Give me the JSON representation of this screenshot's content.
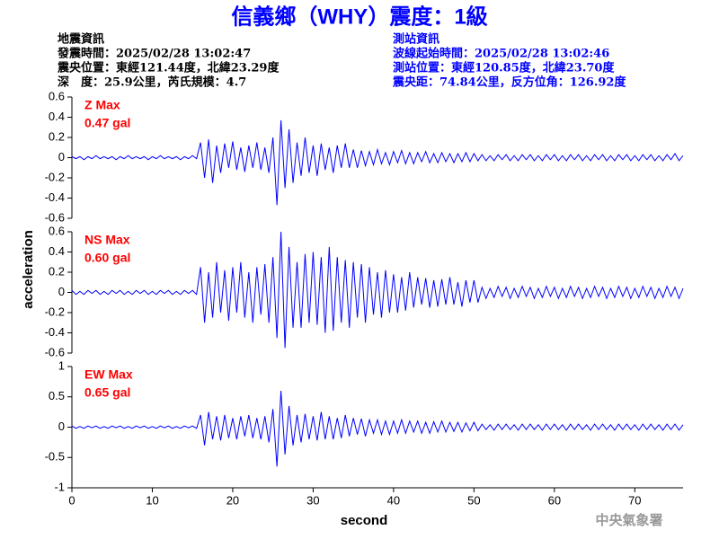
{
  "header": {
    "title": "信義鄉（WHY）震度：1級",
    "left": [
      "地震資訊",
      "發震時間：2025/02/28 13:02:47",
      "震央位置：東經121.44度，北緯23.29度",
      "深　度：25.9公里，芮氏規模：4.7"
    ],
    "right": [
      "測站資訊",
      "波線起始時間：2025/02/28 13:02:46",
      "測站位置：東經120.85度，北緯23.70度",
      "震央距：74.84公里，反方位角：126.92度"
    ]
  },
  "footer": "中央氣象署",
  "chart_data": {
    "type": "line",
    "xlabel": "second",
    "ylabel": "acceleration",
    "xlim": [
      0,
      76
    ],
    "xticks": [
      0,
      10,
      20,
      30,
      40,
      50,
      60,
      70
    ],
    "color": "#0000ff",
    "x": [
      0,
      0.5,
      1,
      1.5,
      2,
      2.5,
      3,
      3.5,
      4,
      4.5,
      5,
      5.5,
      6,
      6.5,
      7,
      7.5,
      8,
      8.5,
      9,
      9.5,
      10,
      10.5,
      11,
      11.5,
      12,
      12.5,
      13,
      13.5,
      14,
      14.5,
      15,
      15.5,
      16,
      16.5,
      17,
      17.5,
      18,
      18.5,
      19,
      19.5,
      20,
      20.5,
      21,
      21.5,
      22,
      22.5,
      23,
      23.5,
      24,
      24.5,
      25,
      25.5,
      26,
      26.5,
      27,
      27.5,
      28,
      28.5,
      29,
      29.5,
      30,
      30.5,
      31,
      31.5,
      32,
      32.5,
      33,
      33.5,
      34,
      34.5,
      35,
      35.5,
      36,
      36.5,
      37,
      37.5,
      38,
      38.5,
      39,
      39.5,
      40,
      40.5,
      41,
      41.5,
      42,
      42.5,
      43,
      43.5,
      44,
      44.5,
      45,
      45.5,
      46,
      46.5,
      47,
      47.5,
      48,
      48.5,
      49,
      49.5,
      50,
      50.5,
      51,
      51.5,
      52,
      52.5,
      53,
      53.5,
      54,
      54.5,
      55,
      55.5,
      56,
      56.5,
      57,
      57.5,
      58,
      58.5,
      59,
      59.5,
      60,
      60.5,
      61,
      61.5,
      62,
      62.5,
      63,
      63.5,
      64,
      64.5,
      65,
      65.5,
      66,
      66.5,
      67,
      67.5,
      68,
      68.5,
      69,
      69.5,
      70,
      70.5,
      71,
      71.5,
      72,
      72.5,
      73,
      73.5,
      74,
      74.5,
      75,
      75.5,
      76
    ],
    "panels": [
      {
        "name": "Z Max",
        "max_label": "0.47 gal",
        "ylim": [
          -0.6,
          0.6
        ],
        "yticks": [
          0.6,
          0.4,
          0.2,
          0,
          -0.2,
          -0.4,
          -0.6
        ],
        "values": [
          0.01,
          -0.01,
          0.01,
          -0.02,
          0.01,
          -0.01,
          0.02,
          -0.01,
          0.01,
          -0.01,
          0.01,
          -0.02,
          0.01,
          -0.01,
          0.02,
          -0.01,
          0.01,
          -0.01,
          0.01,
          -0.02,
          0.01,
          -0.01,
          0.02,
          -0.01,
          0.01,
          -0.01,
          0.01,
          -0.02,
          0.01,
          -0.01,
          0.02,
          -0.01,
          0.15,
          -0.2,
          0.18,
          -0.25,
          0.12,
          -0.15,
          0.14,
          -0.1,
          0.16,
          -0.12,
          0.1,
          -0.14,
          0.12,
          -0.1,
          0.15,
          -0.12,
          0.1,
          -0.15,
          0.2,
          -0.47,
          0.37,
          -0.3,
          0.28,
          -0.25,
          0.15,
          -0.18,
          0.2,
          -0.15,
          0.12,
          -0.18,
          0.14,
          -0.12,
          0.1,
          -0.15,
          0.12,
          -0.1,
          0.14,
          -0.1,
          0.08,
          -0.1,
          0.07,
          -0.08,
          0.06,
          -0.07,
          0.08,
          -0.06,
          0.05,
          -0.07,
          0.06,
          -0.05,
          0.07,
          -0.06,
          0.05,
          -0.06,
          0.05,
          -0.04,
          0.06,
          -0.05,
          0.04,
          -0.05,
          0.05,
          -0.04,
          0.04,
          -0.05,
          0.04,
          -0.04,
          0.05,
          -0.04,
          0.04,
          -0.03,
          0.03,
          -0.03,
          0.02,
          -0.03,
          0.03,
          -0.02,
          0.03,
          -0.03,
          0.02,
          -0.03,
          0.03,
          -0.02,
          0.03,
          -0.03,
          0.02,
          -0.03,
          0.03,
          -0.02,
          0.03,
          -0.03,
          0.02,
          -0.03,
          0.03,
          -0.02,
          0.03,
          -0.03,
          0.02,
          -0.03,
          0.03,
          -0.02,
          0.03,
          -0.03,
          0.02,
          -0.03,
          0.03,
          -0.02,
          0.03,
          -0.03,
          0.02,
          -0.03,
          0.03,
          -0.02,
          0.03,
          -0.03,
          0.02,
          -0.03,
          0.03,
          -0.02,
          0.04,
          -0.03,
          0.02
        ]
      },
      {
        "name": "NS Max",
        "max_label": "0.60 gal",
        "ylim": [
          -0.6,
          0.6
        ],
        "yticks": [
          0.6,
          0.4,
          0.2,
          0,
          -0.2,
          -0.4,
          -0.6
        ],
        "values": [
          0.02,
          -0.02,
          0.01,
          -0.02,
          0.02,
          -0.01,
          0.02,
          -0.02,
          0.01,
          -0.02,
          0.02,
          -0.01,
          0.02,
          -0.02,
          0.01,
          -0.02,
          0.02,
          -0.01,
          0.02,
          -0.02,
          0.01,
          -0.02,
          0.02,
          -0.01,
          0.02,
          -0.02,
          0.01,
          -0.02,
          0.02,
          -0.01,
          0.02,
          -0.02,
          0.25,
          -0.3,
          0.2,
          -0.25,
          0.3,
          -0.2,
          0.22,
          -0.28,
          0.25,
          -0.2,
          0.3,
          -0.25,
          0.2,
          -0.3,
          0.25,
          -0.22,
          0.28,
          -0.3,
          0.35,
          -0.45,
          0.6,
          -0.55,
          0.45,
          -0.35,
          0.3,
          -0.35,
          0.38,
          -0.3,
          0.4,
          -0.32,
          0.35,
          -0.4,
          0.45,
          -0.38,
          0.35,
          -0.3,
          0.32,
          -0.35,
          0.3,
          -0.25,
          0.28,
          -0.3,
          0.25,
          -0.22,
          0.2,
          -0.25,
          0.22,
          -0.2,
          0.18,
          -0.2,
          0.15,
          -0.18,
          0.2,
          -0.15,
          0.15,
          -0.12,
          0.14,
          -0.15,
          0.12,
          -0.14,
          0.13,
          -0.12,
          0.15,
          -0.12,
          0.1,
          -0.14,
          0.12,
          -0.1,
          0.12,
          -0.1,
          0.05,
          -0.06,
          0.04,
          -0.05,
          0.06,
          -0.04,
          0.05,
          -0.06,
          0.04,
          -0.05,
          0.06,
          -0.04,
          0.05,
          -0.06,
          0.04,
          -0.05,
          0.06,
          -0.04,
          0.05,
          -0.06,
          0.04,
          -0.05,
          0.06,
          -0.04,
          0.05,
          -0.06,
          0.04,
          -0.05,
          0.06,
          -0.04,
          0.05,
          -0.06,
          0.04,
          -0.05,
          0.06,
          -0.04,
          0.05,
          -0.06,
          0.04,
          -0.05,
          0.06,
          -0.04,
          0.05,
          -0.06,
          0.04,
          -0.05,
          0.06,
          -0.04,
          0.05,
          -0.06,
          0.04
        ]
      },
      {
        "name": "EW Max",
        "max_label": "0.65 gal",
        "ylim": [
          -1,
          1
        ],
        "yticks": [
          1,
          0.5,
          0,
          -0.5,
          -1
        ],
        "values": [
          0.02,
          -0.02,
          0.01,
          -0.02,
          0.02,
          -0.01,
          0.02,
          -0.02,
          0.01,
          -0.02,
          0.02,
          -0.01,
          0.02,
          -0.02,
          0.01,
          -0.02,
          0.02,
          -0.01,
          0.02,
          -0.02,
          0.01,
          -0.02,
          0.02,
          -0.01,
          0.02,
          -0.02,
          0.01,
          -0.02,
          0.02,
          -0.01,
          0.02,
          -0.02,
          0.2,
          -0.3,
          0.25,
          -0.2,
          0.18,
          -0.22,
          0.2,
          -0.18,
          0.15,
          -0.2,
          0.18,
          -0.15,
          0.2,
          -0.18,
          0.15,
          -0.2,
          0.18,
          -0.25,
          0.3,
          -0.65,
          0.6,
          -0.45,
          0.35,
          -0.3,
          0.2,
          -0.25,
          0.22,
          -0.2,
          0.18,
          -0.22,
          0.25,
          -0.2,
          0.18,
          -0.2,
          0.15,
          -0.18,
          0.2,
          -0.15,
          0.15,
          -0.12,
          0.14,
          -0.15,
          0.12,
          -0.1,
          0.12,
          -0.12,
          0.1,
          -0.12,
          0.1,
          -0.1,
          0.12,
          -0.1,
          0.1,
          -0.08,
          0.1,
          -0.1,
          0.08,
          -0.1,
          0.09,
          -0.08,
          0.1,
          -0.08,
          0.08,
          -0.07,
          0.08,
          -0.08,
          0.07,
          -0.06,
          0.08,
          -0.06,
          0.05,
          -0.04,
          0.04,
          -0.05,
          0.05,
          -0.04,
          0.05,
          -0.04,
          0.04,
          -0.05,
          0.05,
          -0.04,
          0.05,
          -0.04,
          0.04,
          -0.05,
          0.05,
          -0.04,
          0.05,
          -0.04,
          0.04,
          -0.05,
          0.05,
          -0.04,
          0.05,
          -0.04,
          0.04,
          -0.05,
          0.05,
          -0.04,
          0.05,
          -0.04,
          0.04,
          -0.05,
          0.05,
          -0.04,
          0.05,
          -0.04,
          0.04,
          -0.05,
          0.05,
          -0.04,
          0.05,
          -0.04,
          0.04,
          -0.05,
          0.05,
          -0.04,
          0.05,
          -0.05,
          0.04
        ]
      }
    ]
  }
}
